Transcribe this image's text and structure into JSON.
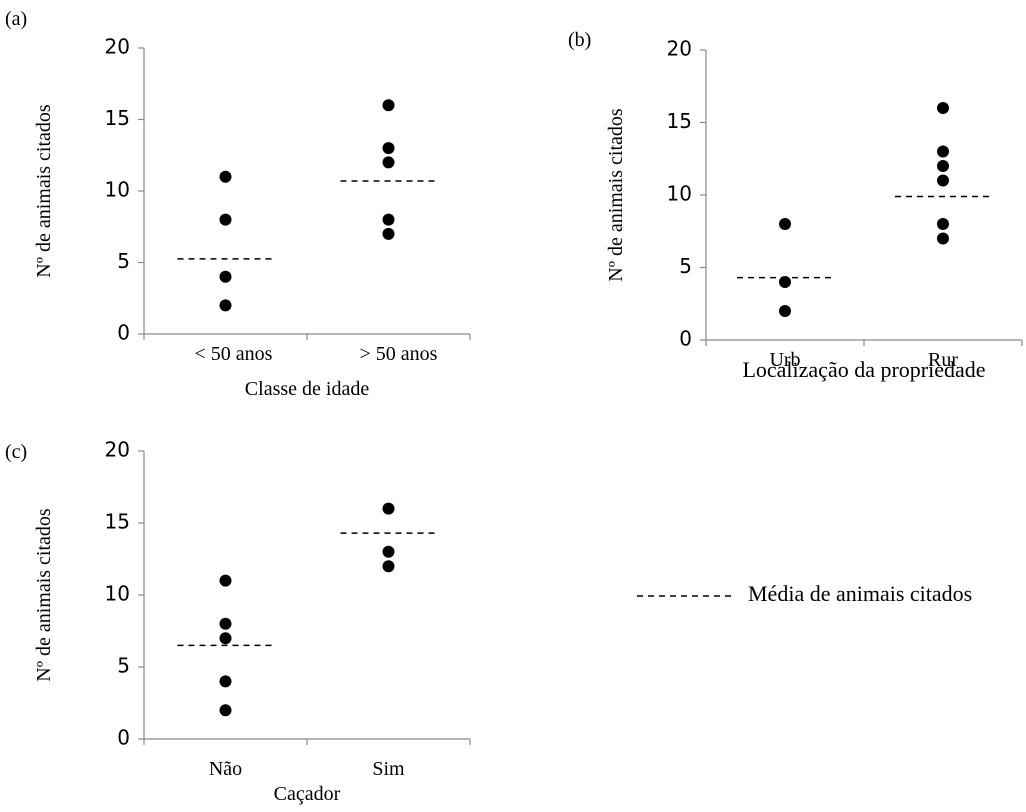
{
  "legend": {
    "label": "Média de animais citados",
    "placement": "center-right"
  },
  "chart_data": [
    {
      "type": "scatter",
      "panel_label": "(a)",
      "ylabel": "Nº de animais citados",
      "xlabel": "Classe de idade",
      "categories": [
        "< 50 anos",
        "> 50 anos"
      ],
      "yticks": [
        0,
        5,
        10,
        15,
        20
      ],
      "ylim": [
        0,
        20
      ],
      "points": [
        {
          "category": 0,
          "y": 11
        },
        {
          "category": 0,
          "y": 8
        },
        {
          "category": 0,
          "y": 4
        },
        {
          "category": 0,
          "y": 2
        },
        {
          "category": 1,
          "y": 16
        },
        {
          "category": 1,
          "y": 13
        },
        {
          "category": 1,
          "y": 12
        },
        {
          "category": 1,
          "y": 8
        },
        {
          "category": 1,
          "y": 7
        }
      ],
      "means": [
        5.25,
        10.7
      ],
      "grid": false
    },
    {
      "type": "scatter",
      "panel_label": "(b)",
      "ylabel": "Nº de animais  citados",
      "xlabel": "Localização da propriedade",
      "categories": [
        "Urb",
        "Rur"
      ],
      "yticks": [
        0,
        5,
        10,
        15,
        20
      ],
      "ylim": [
        0,
        20
      ],
      "points": [
        {
          "category": 0,
          "y": 8
        },
        {
          "category": 0,
          "y": 4
        },
        {
          "category": 0,
          "y": 2
        },
        {
          "category": 1,
          "y": 16
        },
        {
          "category": 1,
          "y": 13
        },
        {
          "category": 1,
          "y": 12
        },
        {
          "category": 1,
          "y": 11
        },
        {
          "category": 1,
          "y": 8
        },
        {
          "category": 1,
          "y": 7
        }
      ],
      "means": [
        4.3,
        9.9
      ],
      "grid": false
    },
    {
      "type": "scatter",
      "panel_label": "(c)",
      "ylabel": "Nº de animais citados",
      "xlabel": "Caçador",
      "categories": [
        "Não",
        "Sim"
      ],
      "yticks": [
        0,
        5,
        10,
        15,
        20
      ],
      "ylim": [
        0,
        20
      ],
      "points": [
        {
          "category": 0,
          "y": 11
        },
        {
          "category": 0,
          "y": 8
        },
        {
          "category": 0,
          "y": 7
        },
        {
          "category": 0,
          "y": 4
        },
        {
          "category": 0,
          "y": 2
        },
        {
          "category": 1,
          "y": 16
        },
        {
          "category": 1,
          "y": 13
        },
        {
          "category": 1,
          "y": 12
        }
      ],
      "means": [
        6.5,
        14.3
      ],
      "grid": false
    }
  ]
}
